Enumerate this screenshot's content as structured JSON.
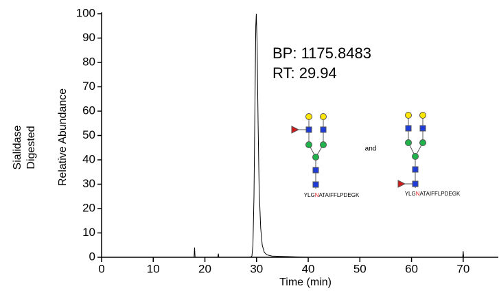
{
  "chart_data": {
    "type": "line",
    "side_label": [
      "Sialidase",
      "Digested"
    ],
    "ylabel": "Relative Abundance",
    "xlabel": "Time (min)",
    "annotations": [
      "BP: 1175.8483",
      "RT: 29.94"
    ],
    "connector": "and",
    "glycan_peptides": [
      {
        "before": "YLG",
        "site": "N",
        "after": "ATAIFFLPDEGK"
      },
      {
        "before": "YLG",
        "site": "N",
        "after": "ATAIFFLPDEGK"
      }
    ],
    "x": [
      0,
      5,
      10,
      17.9,
      18,
      18.1,
      22.5,
      22.6,
      22.7,
      25,
      28.8,
      29.1,
      29.3,
      29.5,
      29.7,
      29.85,
      29.95,
      30.1,
      30.3,
      30.5,
      30.8,
      31.1,
      31.5,
      32,
      33,
      40,
      50,
      60,
      69.9,
      70,
      70.1,
      76.8
    ],
    "values": [
      0,
      0,
      0,
      0,
      4,
      0,
      0,
      1.5,
      0,
      0,
      0,
      0.5,
      5,
      25,
      65,
      95,
      100,
      88,
      55,
      28,
      12,
      5,
      2,
      1,
      0.5,
      0,
      0,
      0,
      0,
      2.5,
      0,
      0
    ],
    "color": "#000000",
    "xlim": [
      0,
      76.8
    ],
    "ylim": [
      0,
      100
    ],
    "xticks": [
      0,
      10,
      20,
      30,
      40,
      50,
      60,
      70
    ],
    "yticks": [
      0,
      10,
      20,
      30,
      40,
      50,
      60,
      70,
      80,
      90,
      100
    ]
  }
}
